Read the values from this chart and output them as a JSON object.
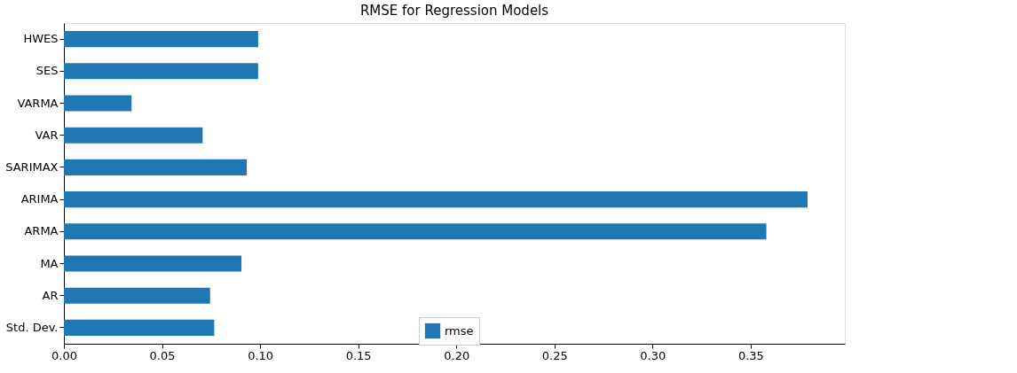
{
  "chart_data": {
    "type": "bar",
    "orientation": "horizontal",
    "title": "RMSE for Regression Models",
    "categories": [
      "HWES",
      "SES",
      "VARMA",
      "VAR",
      "SARIMAX",
      "ARIMA",
      "ARMA",
      "MA",
      "AR",
      "Std. Dev."
    ],
    "series": [
      {
        "name": "rmse",
        "color": "#1f77b4",
        "values": [
          0.099,
          0.099,
          0.0345,
          0.0707,
          0.0932,
          0.379,
          0.358,
          0.0905,
          0.0745,
          0.0766
        ]
      }
    ],
    "xlim": [
      0,
      0.398
    ],
    "xticks": [
      {
        "value": 0,
        "label": "0.00"
      },
      0.05,
      {
        "value": 0.1,
        "label": "0.10"
      },
      0.15,
      {
        "value": 0.2,
        "label": "0.20"
      },
      0.25,
      {
        "value": 0.3,
        "label": "0.30"
      },
      0.35
    ],
    "grid": false,
    "legend": "bottom"
  }
}
